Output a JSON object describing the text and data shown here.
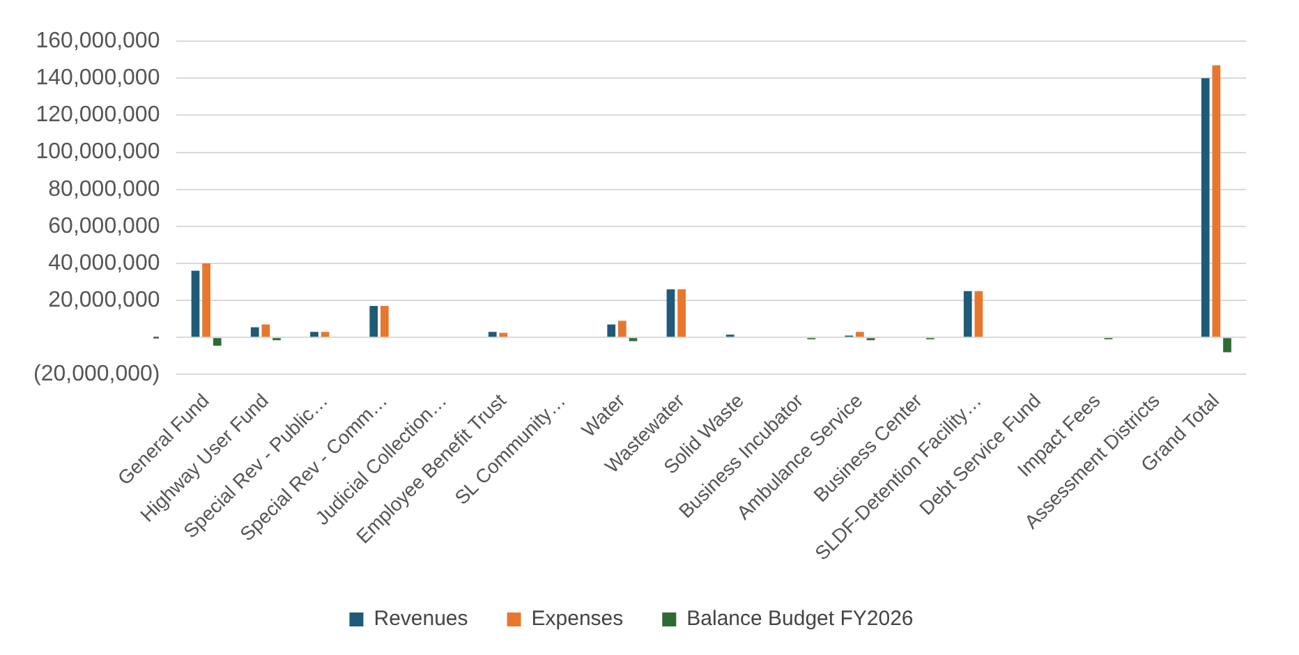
{
  "chart_data": {
    "type": "bar",
    "categories": [
      "General Fund",
      "Highway User Fund",
      "Special Rev - Public…",
      "Special Rev - Comm…",
      "Judicial Collection…",
      "Employee Benefit Trust",
      "SL Community…",
      "Water",
      "Wastewater",
      "Solid Waste",
      "Business Incubator",
      "Ambulance Service",
      "Business Center",
      "SLDF-Detention Facility…",
      "Debt Service Fund",
      "Impact Fees",
      "Assessment Districts",
      "Grand Total"
    ],
    "series": [
      {
        "name": "Revenues",
        "color": "#1f5b78",
        "values": [
          36000000,
          5500000,
          3000000,
          17000000,
          null,
          3000000,
          null,
          7000000,
          26000000,
          1500000,
          null,
          1000000,
          null,
          25000000,
          null,
          null,
          null,
          140000000
        ]
      },
      {
        "name": "Expenses",
        "color": "#e8772e",
        "values": [
          40000000,
          7000000,
          3000000,
          17000000,
          null,
          2500000,
          null,
          9000000,
          26000000,
          null,
          null,
          3000000,
          null,
          25000000,
          null,
          null,
          null,
          147000000
        ]
      },
      {
        "name": "Balance Budget FY2026",
        "color": "#2e6b34",
        "values": [
          -4500000,
          -1500000,
          null,
          null,
          null,
          null,
          null,
          -2000000,
          null,
          null,
          -1000000,
          -1500000,
          -1000000,
          null,
          null,
          -1000000,
          null,
          -8000000
        ]
      }
    ],
    "ylim": [
      -20000000,
      160000000
    ],
    "yticks": [
      {
        "value": -20000000,
        "label": "(20,000,000)"
      },
      {
        "value": 0,
        "label": "-"
      },
      {
        "value": 20000000,
        "label": "20,000,000"
      },
      {
        "value": 40000000,
        "label": "40,000,000"
      },
      {
        "value": 60000000,
        "label": "60,000,000"
      },
      {
        "value": 80000000,
        "label": "80,000,000"
      },
      {
        "value": 100000000,
        "label": "100,000,000"
      },
      {
        "value": 120000000,
        "label": "120,000,000"
      },
      {
        "value": 140000000,
        "label": "140,000,000"
      },
      {
        "value": 160000000,
        "label": "160,000,000"
      }
    ],
    "grid": "y",
    "legend": "bottom"
  }
}
